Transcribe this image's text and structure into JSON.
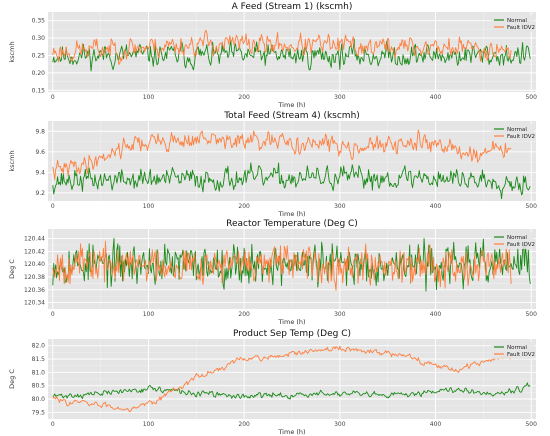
{
  "colors": {
    "normal": "#1a8a1a",
    "fault": "#ff7f3f",
    "panel": "#e5e5e5",
    "grid": "#ffffff"
  },
  "chart_data": [
    {
      "type": "line",
      "title": "A Feed (Stream 1) (kscmh)",
      "xlabel": "Time (h)",
      "ylabel": "kscmh",
      "xlim": [
        -5,
        505
      ],
      "ylim": [
        0.145,
        0.375
      ],
      "xticks": [
        0,
        100,
        200,
        300,
        400,
        500
      ],
      "yticks": [
        0.15,
        0.2,
        0.25,
        0.3,
        0.35
      ],
      "ytick_labels": [
        "0.15",
        "0.20",
        "0.25",
        "0.30",
        "0.35"
      ],
      "legend": "top-right",
      "grid": true,
      "series": [
        {
          "name": "Normal",
          "color": "#1a8a1a",
          "n": 500,
          "seed": 11,
          "mean": 0.25,
          "amp": 0.03,
          "smooth": 0.45,
          "trend": [
            [
              0,
              0.25
            ],
            [
              500,
              0.25
            ]
          ]
        },
        {
          "name": "Fault IDV2",
          "color": "#ff7f3f",
          "n": 480,
          "seed": 23,
          "mean": 0.27,
          "amp": 0.03,
          "smooth": 0.5,
          "trend": [
            [
              0,
              0.26
            ],
            [
              100,
              0.275
            ],
            [
              160,
              0.285
            ],
            [
              250,
              0.28
            ],
            [
              350,
              0.275
            ],
            [
              480,
              0.27
            ]
          ]
        }
      ]
    },
    {
      "type": "line",
      "title": "Total Feed (Stream 4) (kscmh)",
      "xlabel": "Time (h)",
      "ylabel": "kscmh",
      "xlim": [
        -5,
        505
      ],
      "ylim": [
        9.12,
        9.9
      ],
      "xticks": [
        0,
        100,
        200,
        300,
        400,
        500
      ],
      "yticks": [
        9.2,
        9.4,
        9.6,
        9.8
      ],
      "ytick_labels": [
        "9.2",
        "9.4",
        "9.6",
        "9.8"
      ],
      "legend": "top-right",
      "grid": true,
      "series": [
        {
          "name": "Normal",
          "color": "#1a8a1a",
          "n": 500,
          "seed": 37,
          "mean": 9.33,
          "amp": 0.09,
          "smooth": 0.4,
          "trend": [
            [
              0,
              9.32
            ],
            [
              200,
              9.34
            ],
            [
              400,
              9.35
            ],
            [
              500,
              9.3
            ]
          ]
        },
        {
          "name": "Fault IDV2",
          "color": "#ff7f3f",
          "n": 480,
          "seed": 41,
          "mean": 9.6,
          "amp": 0.08,
          "smooth": 0.45,
          "trend": [
            [
              0,
              9.4
            ],
            [
              40,
              9.5
            ],
            [
              80,
              9.68
            ],
            [
              150,
              9.72
            ],
            [
              250,
              9.68
            ],
            [
              350,
              9.65
            ],
            [
              400,
              9.7
            ],
            [
              430,
              9.58
            ],
            [
              480,
              9.62
            ]
          ]
        }
      ]
    },
    {
      "type": "line",
      "title": "Reactor Temperature (Deg C)",
      "xlabel": "Time (h)",
      "ylabel": "Deg C",
      "xlim": [
        -5,
        505
      ],
      "ylim": [
        120.33,
        120.455
      ],
      "xticks": [
        0,
        100,
        200,
        300,
        400,
        500
      ],
      "yticks": [
        120.34,
        120.36,
        120.38,
        120.4,
        120.42,
        120.44
      ],
      "ytick_labels": [
        "120.34",
        "120.36",
        "120.38",
        "120.40",
        "120.42",
        "120.44"
      ],
      "legend": "top-right",
      "grid": true,
      "series": [
        {
          "name": "Normal",
          "color": "#1a8a1a",
          "n": 500,
          "seed": 53,
          "mean": 120.4,
          "amp": 0.018,
          "smooth": 0.05,
          "trend": [
            [
              0,
              120.4
            ],
            [
              500,
              120.4
            ]
          ]
        },
        {
          "name": "Fault IDV2",
          "color": "#ff7f3f",
          "n": 480,
          "seed": 67,
          "mean": 120.4,
          "amp": 0.016,
          "smooth": 0.05,
          "trend": [
            [
              0,
              120.4
            ],
            [
              480,
              120.4
            ]
          ]
        }
      ]
    },
    {
      "type": "line",
      "title": "Product Sep Temp (Deg C)",
      "xlabel": "Time (h)",
      "ylabel": "Deg C",
      "xlim": [
        -5,
        505
      ],
      "ylim": [
        79.25,
        82.25
      ],
      "xticks": [
        0,
        100,
        200,
        300,
        400,
        500
      ],
      "yticks": [
        79.5,
        80.0,
        80.5,
        81.0,
        81.5,
        82.0
      ],
      "ytick_labels": [
        "79.5",
        "80.0",
        "80.5",
        "81.0",
        "81.5",
        "82.0"
      ],
      "legend": "top-right",
      "grid": true,
      "series": [
        {
          "name": "Normal",
          "color": "#1a8a1a",
          "n": 500,
          "seed": 71,
          "mean": 80.2,
          "amp": 0.12,
          "smooth": 0.55,
          "trend": [
            [
              0,
              80.1
            ],
            [
              50,
              80.2
            ],
            [
              100,
              80.4
            ],
            [
              150,
              80.2
            ],
            [
              200,
              80.1
            ],
            [
              300,
              80.2
            ],
            [
              350,
              80.1
            ],
            [
              420,
              80.4
            ],
            [
              460,
              80.2
            ],
            [
              500,
              80.5
            ]
          ]
        },
        {
          "name": "Fault IDV2",
          "color": "#ff7f3f",
          "n": 480,
          "seed": 83,
          "mean": 80.9,
          "amp": 0.13,
          "smooth": 0.6,
          "trend": [
            [
              0,
              80.0
            ],
            [
              40,
              79.8
            ],
            [
              80,
              79.65
            ],
            [
              110,
              80.0
            ],
            [
              150,
              80.8
            ],
            [
              200,
              81.5
            ],
            [
              260,
              81.7
            ],
            [
              300,
              81.9
            ],
            [
              330,
              81.8
            ],
            [
              380,
              81.5
            ],
            [
              420,
              81.1
            ],
            [
              450,
              81.4
            ],
            [
              480,
              81.6
            ]
          ]
        }
      ]
    }
  ]
}
